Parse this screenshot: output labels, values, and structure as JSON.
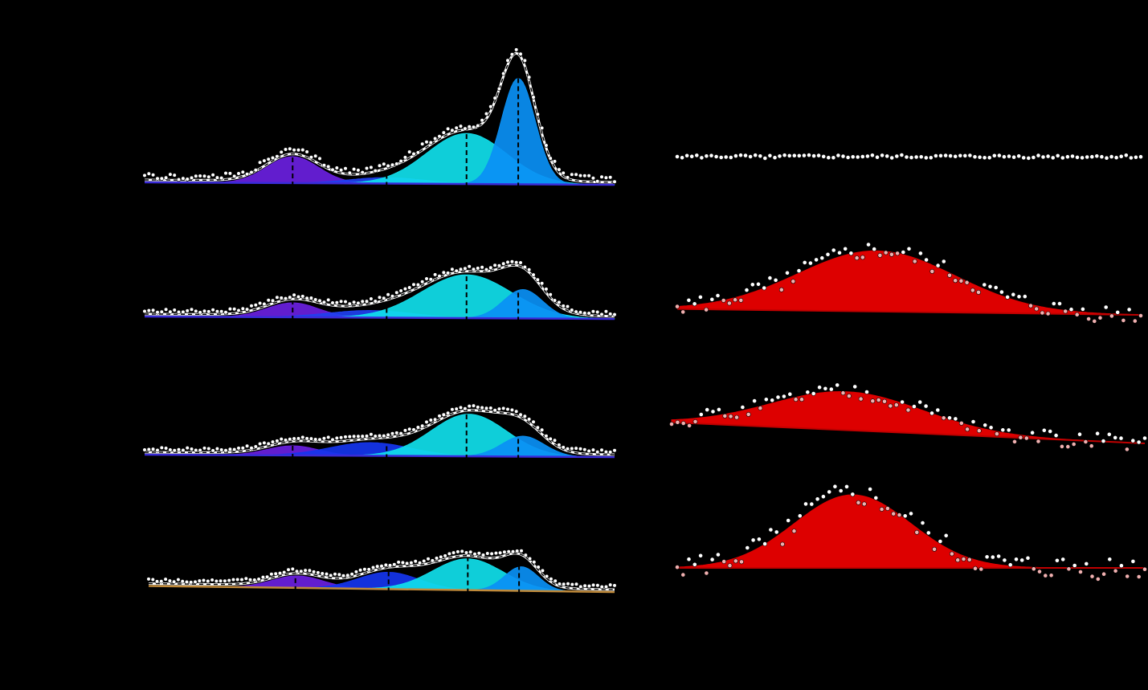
{
  "chart_data": [
    {
      "type": "area",
      "panel": "left-1",
      "xlim": [
        0,
        100
      ],
      "ylim": [
        0,
        1.0
      ],
      "grid": false,
      "peak_markers": [
        31.5,
        51.5,
        68.5,
        79.5
      ],
      "background_line": {
        "color": "#3a2bd8",
        "values_at_xlim": [
          0.02,
          0.0
        ]
      },
      "components": [
        {
          "center": 31.5,
          "width": 5.5,
          "height": 0.22,
          "color": "#6a1fe0"
        },
        {
          "center": 51.5,
          "width": 8.0,
          "height": 0.05,
          "color": "#2040f0"
        },
        {
          "center": 68.5,
          "width": 8.5,
          "height": 0.42,
          "color": "#10e0ec"
        },
        {
          "center": 79.5,
          "width": 3.6,
          "height": 0.88,
          "color": "#0a90f5"
        }
      ],
      "fit_color": "#ffffff",
      "points_color": "#ffffff",
      "point_noise": 0.025
    },
    {
      "type": "area",
      "panel": "left-2",
      "xlim": [
        0,
        100
      ],
      "ylim": [
        0,
        1.0
      ],
      "grid": false,
      "peak_markers": [
        31.5,
        51.5,
        68.5,
        79.5
      ],
      "background_line": {
        "color": "#3a2bd8",
        "values_at_xlim": [
          0.02,
          0.0
        ]
      },
      "components": [
        {
          "center": 31.5,
          "width": 5.5,
          "height": 0.12,
          "color": "#6a1fe0"
        },
        {
          "center": 48.0,
          "width": 9.0,
          "height": 0.06,
          "color": "#2040f0"
        },
        {
          "center": 68.5,
          "width": 9.5,
          "height": 0.36,
          "color": "#10e0ec"
        },
        {
          "center": 80.5,
          "width": 4.2,
          "height": 0.24,
          "color": "#0a90f5"
        }
      ],
      "fit_color": "#ffffff",
      "points_color": "#ffffff",
      "point_noise": 0.015
    },
    {
      "type": "area",
      "panel": "left-3",
      "xlim": [
        0,
        100
      ],
      "ylim": [
        0,
        1.0
      ],
      "grid": false,
      "peak_markers": [
        31.5,
        51.5,
        68.5,
        79.5
      ],
      "background_line": {
        "color": "#3a2bd8",
        "values_at_xlim": [
          0.02,
          0.0
        ]
      },
      "components": [
        {
          "center": 31.5,
          "width": 5.5,
          "height": 0.08,
          "color": "#6a1fe0"
        },
        {
          "center": 48.0,
          "width": 8.5,
          "height": 0.11,
          "color": "#1535ee"
        },
        {
          "center": 69.0,
          "width": 8.0,
          "height": 0.35,
          "color": "#10e0ec"
        },
        {
          "center": 80.5,
          "width": 4.5,
          "height": 0.17,
          "color": "#0a90f5"
        }
      ],
      "fit_color": "#ffffff",
      "points_color": "#ffffff",
      "point_noise": 0.012
    },
    {
      "type": "area",
      "panel": "left-4",
      "xlim": [
        0,
        100
      ],
      "ylim": [
        0,
        1.0
      ],
      "grid": false,
      "peak_markers": [
        31.5,
        51.5,
        68.5,
        79.5
      ],
      "background_line": {
        "color": "#c08a3a",
        "values_at_xlim": [
          0.05,
          0.0
        ]
      },
      "components": [
        {
          "center": 32.0,
          "width": 5.5,
          "height": 0.1,
          "color": "#6a1fe0"
        },
        {
          "center": 51.5,
          "width": 6.5,
          "height": 0.14,
          "color": "#1535ee"
        },
        {
          "center": 68.5,
          "width": 7.5,
          "height": 0.26,
          "color": "#10e0ec"
        },
        {
          "center": 80.0,
          "width": 3.6,
          "height": 0.2,
          "color": "#0a90f5"
        }
      ],
      "fit_color": "#ffffff",
      "points_color": "#ffffff",
      "point_noise": 0.012
    },
    {
      "type": "scatter",
      "panel": "right-1",
      "xlim": [
        0,
        100
      ],
      "ylim": [
        -1,
        1
      ],
      "baseline": 0,
      "point_noise": 0.05,
      "points_color": "#ffffff"
    },
    {
      "type": "area",
      "panel": "right-2",
      "xlim": [
        0,
        100
      ],
      "ylim": [
        0,
        1.0
      ],
      "component": {
        "center": 43.0,
        "width": 17.0,
        "height": 0.82,
        "color": "#dd0000"
      },
      "baseline_values_at_xlim": [
        0.08,
        0.0
      ],
      "point_noise": 0.12,
      "points_color": "#ffffff"
    },
    {
      "type": "area",
      "panel": "right-3",
      "xlim": [
        0,
        100
      ],
      "ylim": [
        0,
        1.0
      ],
      "component": {
        "center": 37.0,
        "width": 16.0,
        "height": 0.55,
        "color": "#dd0000"
      },
      "baseline_values_at_xlim": [
        0.3,
        0.0
      ],
      "point_noise": 0.11,
      "points_color": "#ffffff"
    },
    {
      "type": "area",
      "panel": "right-4",
      "xlim": [
        0,
        100
      ],
      "ylim": [
        0,
        1.0
      ],
      "component": {
        "center": 37.5,
        "width": 12.5,
        "height": 0.85,
        "color": "#dd0000"
      },
      "baseline_values_at_xlim": [
        0.0,
        0.0
      ],
      "point_noise": 0.14,
      "points_color": "#ffffff"
    }
  ]
}
